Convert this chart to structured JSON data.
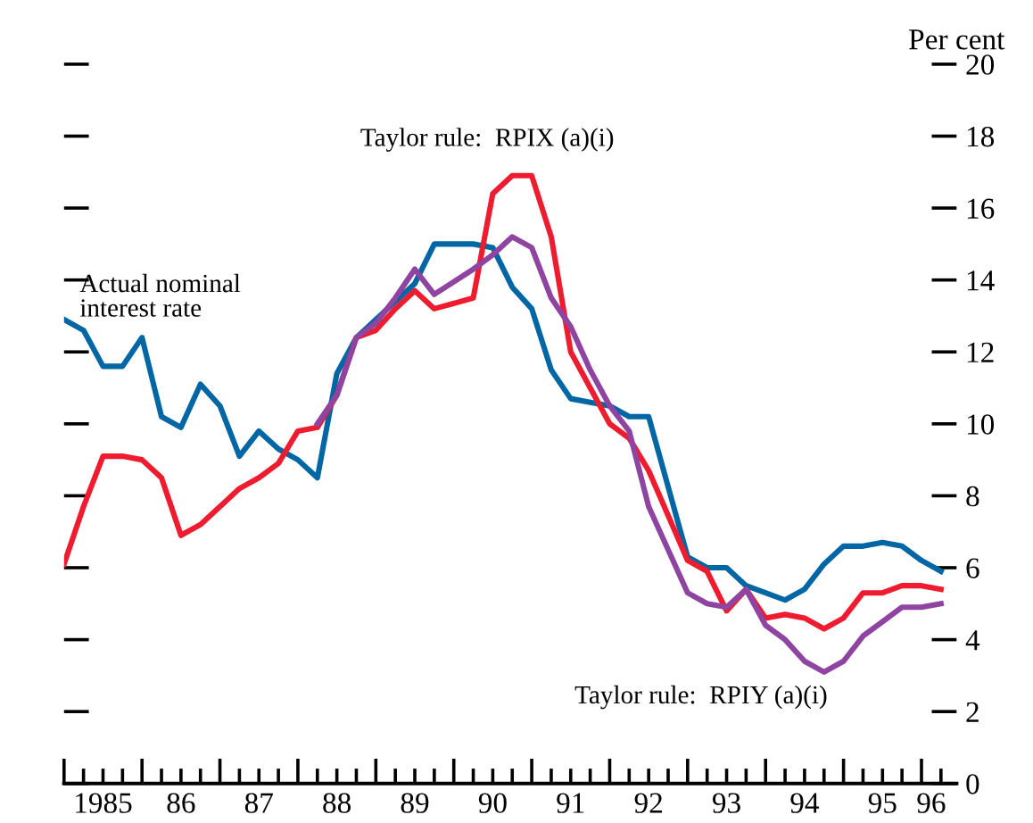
{
  "chart_data": {
    "type": "line",
    "ylabel": "Per cent",
    "categories": [
      null,
      null,
      "1985",
      null,
      null,
      null,
      "86",
      null,
      null,
      null,
      "87",
      null,
      null,
      null,
      "88",
      null,
      null,
      null,
      "89",
      null,
      null,
      null,
      "90",
      null,
      null,
      null,
      "91",
      null,
      null,
      null,
      "92",
      null,
      null,
      null,
      "93",
      null,
      null,
      null,
      "94",
      null,
      null,
      null,
      "95",
      null,
      "96",
      null
    ],
    "ylim": [
      0,
      20
    ],
    "yticks": [
      0,
      2,
      4,
      6,
      8,
      10,
      12,
      14,
      16,
      18,
      20
    ],
    "grid": false,
    "legend": false,
    "marker": "none",
    "line_style": "solid",
    "series": [
      {
        "name": "Actual nominal\ninterest rate",
        "color": "#0066a4",
        "values": [
          12.9,
          12.6,
          11.6,
          11.6,
          12.4,
          10.2,
          9.9,
          11.1,
          10.5,
          9.1,
          9.8,
          9.3,
          9.0,
          8.5,
          11.4,
          12.4,
          12.9,
          13.4,
          13.9,
          15.0,
          15.0,
          15.0,
          14.9,
          13.8,
          13.2,
          11.5,
          10.7,
          10.6,
          10.5,
          10.2,
          10.2,
          null,
          6.3,
          6.0,
          6.0,
          5.5,
          5.3,
          5.1,
          5.4,
          6.1,
          6.6,
          6.6,
          6.7,
          6.6,
          6.2,
          5.9
        ]
      },
      {
        "name": "Taylor rule:  RPIX (a)(i)",
        "color": "#ee1c2e",
        "values": [
          6.1,
          7.7,
          9.1,
          9.1,
          9.0,
          8.5,
          6.9,
          7.2,
          7.7,
          8.2,
          8.5,
          8.9,
          9.8,
          9.9,
          10.8,
          12.4,
          12.6,
          13.2,
          13.7,
          13.2,
          null,
          13.5,
          16.4,
          16.9,
          16.9,
          15.2,
          12.0,
          11.0,
          10.0,
          9.6,
          8.7,
          null,
          6.2,
          5.9,
          4.8,
          5.4,
          4.6,
          4.7,
          4.6,
          4.3,
          4.6,
          5.3,
          5.3,
          5.5,
          5.5,
          5.4
        ]
      },
      {
        "name": "Taylor rule:  RPIY (a)(i)",
        "color": "#8e44a0",
        "values": [
          null,
          null,
          null,
          null,
          null,
          null,
          null,
          null,
          null,
          null,
          null,
          null,
          null,
          10.0,
          10.8,
          12.4,
          12.8,
          13.5,
          14.3,
          13.6,
          null,
          14.3,
          14.7,
          15.2,
          14.9,
          13.5,
          12.7,
          11.5,
          10.5,
          9.8,
          7.7,
          null,
          5.3,
          5.0,
          4.9,
          5.4,
          4.4,
          4.0,
          3.4,
          3.1,
          3.4,
          4.1,
          4.5,
          4.9,
          4.9,
          5.0
        ]
      }
    ]
  }
}
